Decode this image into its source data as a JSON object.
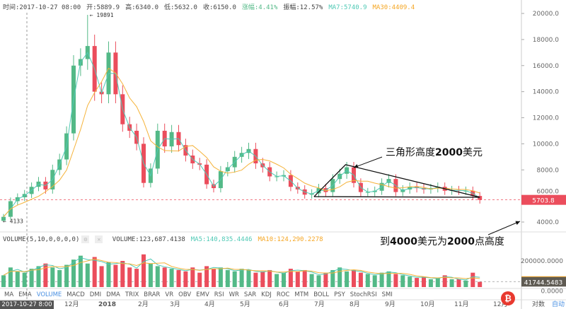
{
  "header": {
    "time": "时间:2017-10-27 08:00",
    "open": "开:5889.9",
    "high": "高:6340.0",
    "low": "低:5632.0",
    "close": "收:6150.0",
    "change": "涨幅:4.41%",
    "amplitude": "振幅:12.57%",
    "ma7": "MA7:5740.9",
    "ma30": "MA30:4409.4"
  },
  "volume_header": {
    "title": "VOLUME(5,10,0,0,0,0)",
    "volume": "VOLUME:123,687.4138",
    "ma5": "MA5:140,835.4446",
    "ma10": "MA10:124,290.2278"
  },
  "indicator_tabs": [
    "MA",
    "EMA",
    "VOLUME",
    "MACD",
    "DMI",
    "DMA",
    "TRIX",
    "BRAR",
    "VR",
    "OBV",
    "EMV",
    "RSI",
    "WR",
    "SAR",
    "KDJ",
    "ROC",
    "MTM",
    "BOLL",
    "PSY",
    "StochRSI",
    "SMI"
  ],
  "active_tab": "VOLUME",
  "time_axis": {
    "cursor_label": "2017-10-27 8:00",
    "months": [
      "12月",
      "2018",
      "2月",
      "3月",
      "4月",
      "5月",
      "6月",
      "7月",
      "8月",
      "9月",
      "10月",
      "11月",
      "12月"
    ]
  },
  "scale_buttons": {
    "log": "对数",
    "auto": "自动"
  },
  "price_axis": {
    "ticks": [
      "20000.0",
      "18000.0",
      "16000.0",
      "14000.0",
      "12000.0",
      "10000.0",
      "8000.0",
      "6000.0",
      "4000.0"
    ],
    "current": "5703.8"
  },
  "volume_axis": {
    "ticks": [
      "200000.0000",
      "0.0000"
    ],
    "current": "41744.5483"
  },
  "markers": {
    "high": "← 19891",
    "low": "← 4133"
  },
  "annotations": {
    "triangle_label_a": "三角形高度",
    "triangle_label_b": "2000",
    "triangle_label_c": "美元",
    "target_a": "到",
    "target_b": "4000",
    "target_c": "美元为",
    "target_d": "2000",
    "target_e": "点高度"
  },
  "colors": {
    "up": "#53b987",
    "down": "#eb4d5c",
    "ma7": "#4fc9b5",
    "ma30": "#f5b33a",
    "active_tab": "#4a90e2"
  },
  "chart_data": {
    "type": "candlestick",
    "start_date": "2017-10-08",
    "step_days": 6,
    "closes": [
      4400,
      5600,
      5900,
      6150,
      6700,
      7100,
      6500,
      8000,
      8800,
      10800,
      16000,
      16500,
      17500,
      14000,
      13800,
      17000,
      13800,
      11500,
      11000,
      10000,
      7000,
      8100,
      11000,
      9800,
      10900,
      9900,
      9100,
      8500,
      8400,
      6900,
      6600,
      7900,
      8200,
      9000,
      9300,
      9600,
      8500,
      8200,
      7500,
      7500,
      7600,
      6700,
      6500,
      6100,
      6200,
      6600,
      6300,
      7300,
      7700,
      8200,
      7000,
      6300,
      6300,
      6400,
      7000,
      7300,
      6300,
      6500,
      6700,
      6600,
      6500,
      6600,
      6700,
      6400,
      6450,
      6400,
      6400,
      6000,
      5700
    ],
    "volumes": [
      90000,
      150000,
      120000,
      110000,
      140000,
      160000,
      180000,
      150000,
      130000,
      170000,
      210000,
      240000,
      180000,
      230000,
      160000,
      190000,
      170000,
      200000,
      150000,
      140000,
      250000,
      180000,
      160000,
      150000,
      140000,
      130000,
      120000,
      150000,
      110000,
      160000,
      140000,
      150000,
      130000,
      120000,
      140000,
      130000,
      110000,
      120000,
      130000,
      100000,
      110000,
      140000,
      120000,
      130000,
      100000,
      90000,
      110000,
      130000,
      150000,
      120000,
      130000,
      110000,
      100000,
      90000,
      110000,
      120000,
      100000,
      90000,
      80000,
      70000,
      80000,
      60000,
      70000,
      90000,
      60000,
      60000,
      50000,
      110000,
      40000
    ],
    "price_range": [
      3500,
      21000
    ],
    "volume_range": [
      0,
      250000
    ],
    "triangle": [
      [
        "2018-07-01",
        5950
      ],
      [
        "2018-07-28",
        8400
      ],
      [
        "2018-11-20",
        5900
      ],
      [
        "2018-07-01",
        5950
      ]
    ]
  }
}
